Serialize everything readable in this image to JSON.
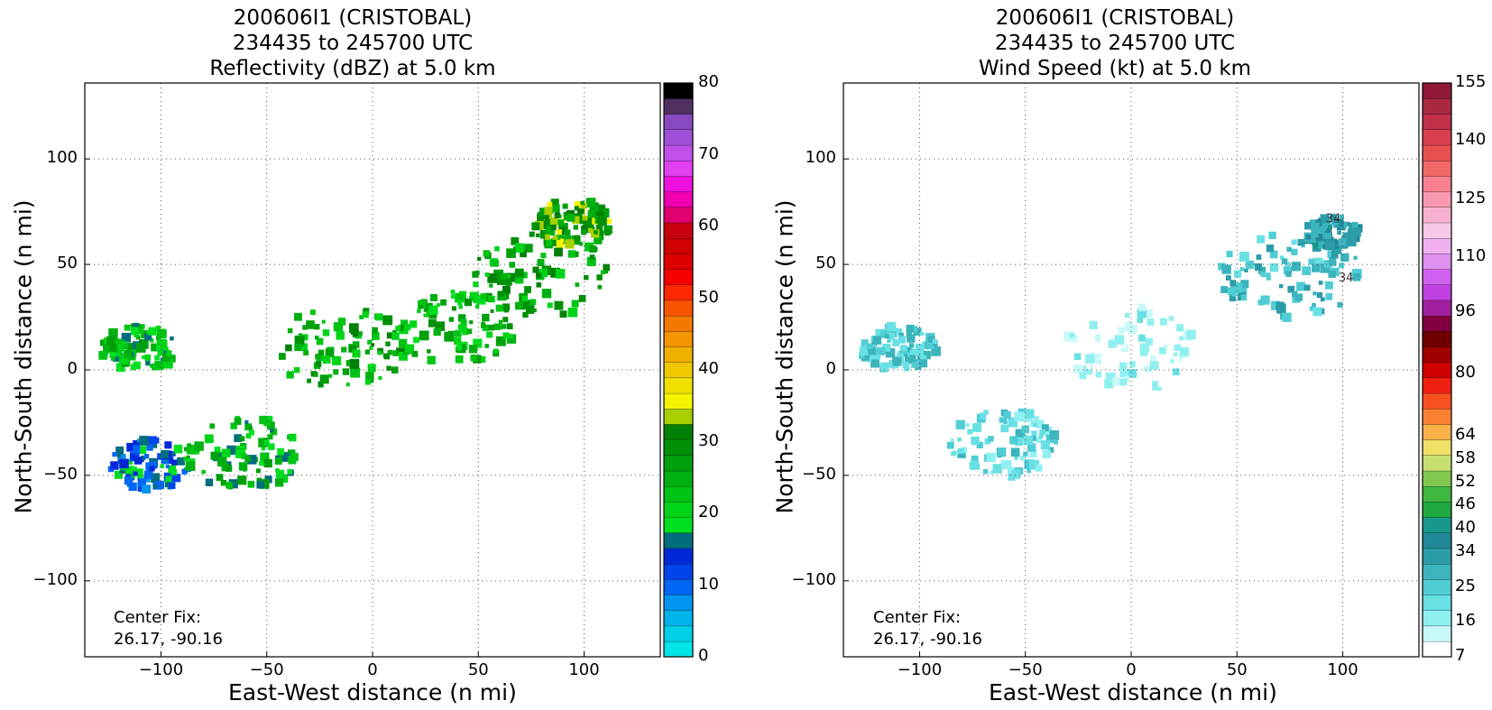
{
  "chart_data": [
    {
      "type": "heatmap",
      "title_lines": [
        "200606I1 (CRISTOBAL)",
        "234435 to 245700 UTC",
        "Reflectivity (dBZ) at 5.0 km"
      ],
      "xlabel": "East-West distance (n mi)",
      "ylabel": "North-South distance (n mi)",
      "xlim": [
        -136,
        136
      ],
      "ylim": [
        -136,
        136
      ],
      "xticks": [
        -100,
        -50,
        0,
        50,
        100
      ],
      "yticks": [
        -100,
        -50,
        0,
        50,
        100
      ],
      "xtick_labels": [
        "−100",
        "−50",
        "0",
        "50",
        "100"
      ],
      "ytick_labels": [
        "−100",
        "−50",
        "0",
        "50",
        "100"
      ],
      "grid": true,
      "center_fix_label": "Center Fix:",
      "center_fix_value": "26.17, -90.16",
      "colorbar": {
        "min": 0,
        "max": 80,
        "ticks": [
          "0",
          "10",
          "20",
          "30",
          "40",
          "50",
          "60",
          "70",
          "80"
        ],
        "tick_values": [
          0,
          10,
          20,
          30,
          40,
          50,
          60,
          70,
          80
        ],
        "colors": [
          "#00e5e8",
          "#00d0e8",
          "#00b5ec",
          "#0096f0",
          "#0066f4",
          "#0044ec",
          "#0028d8",
          "#006e7c",
          "#00e020",
          "#00d418",
          "#00c414",
          "#00b010",
          "#00a00c",
          "#009008",
          "#008006",
          "#a8d000",
          "#f4f400",
          "#f0e000",
          "#f0c800",
          "#f0b000",
          "#f49400",
          "#f47800",
          "#f85400",
          "#fc2800",
          "#f80000",
          "#e00000",
          "#d00000",
          "#c80010",
          "#e00070",
          "#f000b0",
          "#f010e0",
          "#e040f0",
          "#c050e8",
          "#a050d8",
          "#8848c0",
          "#503060",
          "#000000"
        ]
      },
      "storm_regions": [
        {
          "center": [
            -110,
            10
          ],
          "radius": 14,
          "level": 22
        },
        {
          "center": [
            -105,
            -45
          ],
          "radius": 15,
          "level": 14
        },
        {
          "center": [
            -60,
            -40
          ],
          "radius": 22,
          "level": 22
        },
        {
          "center": [
            -15,
            10
          ],
          "radius": 25,
          "level": 26
        },
        {
          "center": [
            40,
            20
          ],
          "radius": 22,
          "level": 24
        },
        {
          "center": [
            80,
            45
          ],
          "radius": 25,
          "level": 26
        },
        {
          "center": [
            95,
            70
          ],
          "radius": 14,
          "level": 30
        }
      ]
    },
    {
      "type": "heatmap",
      "title_lines": [
        "200606I1 (CRISTOBAL)",
        "234435 to 245700 UTC",
        "Wind Speed (kt) at 5.0 km"
      ],
      "xlabel": "East-West distance (n mi)",
      "ylabel": "North-South distance (n mi)",
      "xlim": [
        -136,
        136
      ],
      "ylim": [
        -136,
        136
      ],
      "xticks": [
        -100,
        -50,
        0,
        50,
        100
      ],
      "yticks": [
        -100,
        -50,
        0,
        50,
        100
      ],
      "xtick_labels": [
        "−100",
        "−50",
        "0",
        "50",
        "100"
      ],
      "ytick_labels": [
        "−100",
        "−50",
        "0",
        "50",
        "100"
      ],
      "grid": true,
      "center_fix_label": "Center Fix:",
      "center_fix_value": "26.17, -90.16",
      "contour_labels": [
        "34",
        "34"
      ],
      "colorbar": {
        "ticks": [
          "7",
          "16",
          "25",
          "34",
          "40",
          "46",
          "52",
          "58",
          "64",
          "80",
          "96",
          "110",
          "125",
          "140",
          "155"
        ],
        "colors": [
          "#ffffff",
          "#c8f8f8",
          "#90f0f0",
          "#68e0e4",
          "#50ccd4",
          "#3cb4bc",
          "#2c9ca8",
          "#208898",
          "#18988c",
          "#20a840",
          "#40b840",
          "#80c850",
          "#c8e070",
          "#f0e068",
          "#f8b048",
          "#f88030",
          "#f85020",
          "#f02010",
          "#d00000",
          "#a00000",
          "#700000",
          "#800040",
          "#a020a0",
          "#c040e0",
          "#d060f0",
          "#e090f0",
          "#f0b0f0",
          "#f8c8e8",
          "#f8b0d0",
          "#f898b0",
          "#f88090",
          "#f06868",
          "#e85050",
          "#d84050",
          "#c03048",
          "#a82840",
          "#901838"
        ],
        "tick_values": [
          7,
          16,
          25,
          34,
          40,
          46,
          52,
          58,
          64,
          80,
          96,
          110,
          125,
          140,
          155
        ]
      },
      "storm_regions": [
        {
          "center": [
            -110,
            10
          ],
          "radius": 14,
          "level": 25
        },
        {
          "center": [
            -60,
            -35
          ],
          "radius": 20,
          "level": 22
        },
        {
          "center": [
            0,
            10
          ],
          "radius": 25,
          "level": 14
        },
        {
          "center": [
            75,
            45
          ],
          "radius": 26,
          "level": 28
        },
        {
          "center": [
            95,
            65
          ],
          "radius": 10,
          "level": 34
        }
      ]
    }
  ]
}
